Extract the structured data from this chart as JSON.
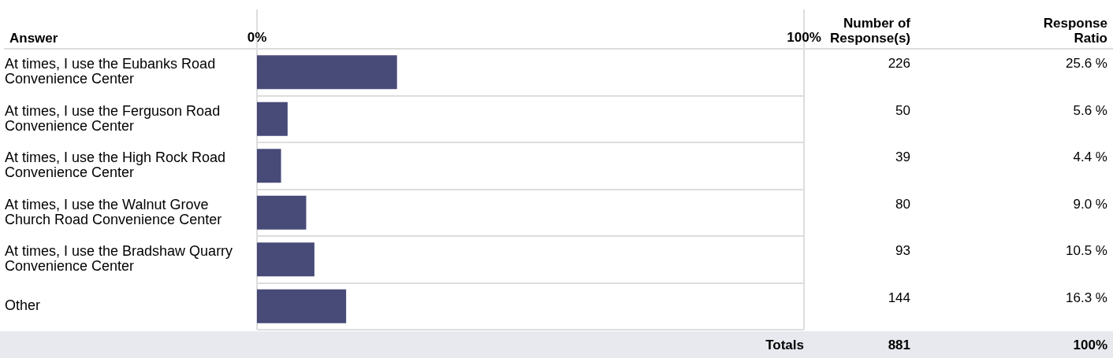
{
  "chart_data": {
    "type": "bar",
    "orientation": "horizontal",
    "categories": [
      "At times, I use the Eubanks Road Convenience Center",
      "At times, I use the Ferguson Road Convenience Center",
      "At times, I use the High Rock Road Convenience Center",
      "At times, I use the Walnut Grove Church Road Convenience Center",
      "At times, I use the Bradshaw Quarry Convenience Center",
      "Other"
    ],
    "values": [
      25.6,
      5.6,
      4.4,
      9.0,
      10.5,
      16.3
    ],
    "value_labels": [
      "25.6 %",
      "5.6 %",
      "4.4 %",
      "9.0 %",
      "10.5 %",
      "16.3 %"
    ],
    "color": "#484a78",
    "xlim": [
      0,
      100
    ],
    "xticks": [
      {
        "value": 0,
        "label": "0%"
      },
      {
        "value": 100,
        "label": "100%"
      }
    ],
    "grid": "y",
    "annotations": [
      "Answer",
      "Number of Response(s)",
      "Response Ratio",
      "Totals",
      "881",
      "100%",
      "226",
      "50",
      "39",
      "80",
      "93",
      "144"
    ]
  }
}
